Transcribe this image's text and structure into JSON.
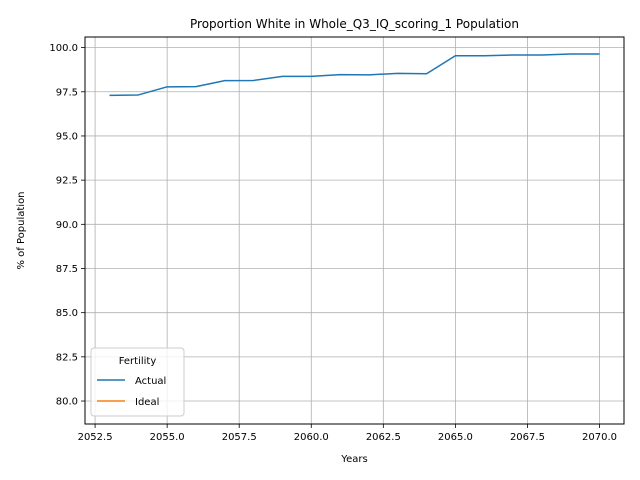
{
  "chart_data": {
    "type": "line",
    "title": "Proportion White in Whole_Q3_IQ_scoring_1 Population",
    "xlabel": "Years",
    "ylabel": "% of Population",
    "xlim": [
      2052.15,
      2070.85
    ],
    "ylim": [
      78.7,
      100.6
    ],
    "x_ticks": [
      2052.5,
      2055.0,
      2057.5,
      2060.0,
      2062.5,
      2065.0,
      2067.5,
      2070.0
    ],
    "x_tick_labels": [
      "2052.5",
      "2055.0",
      "2057.5",
      "2060.0",
      "2062.5",
      "2065.0",
      "2067.5",
      "2070.0"
    ],
    "y_ticks": [
      80.0,
      82.5,
      85.0,
      87.5,
      90.0,
      92.5,
      95.0,
      97.5,
      100.0
    ],
    "y_tick_labels": [
      "80.0",
      "82.5",
      "85.0",
      "87.5",
      "90.0",
      "92.5",
      "95.0",
      "97.5",
      "100.0"
    ],
    "grid": true,
    "legend": {
      "title": "Fertility",
      "placement": "lower-left"
    },
    "series": [
      {
        "name": "Actual",
        "color": "#1f77b4",
        "x": [
          2053,
          2054,
          2055,
          2056,
          2057,
          2058,
          2059,
          2060,
          2061,
          2062,
          2063,
          2064,
          2065,
          2066,
          2067,
          2068,
          2069,
          2070
        ],
        "y": [
          97.3,
          97.32,
          97.78,
          97.79,
          98.13,
          98.14,
          98.37,
          98.37,
          98.47,
          98.46,
          98.54,
          98.52,
          99.54,
          99.54,
          99.58,
          99.58,
          99.64,
          99.64
        ]
      },
      {
        "name": "Ideal",
        "color": "#ff7f0e",
        "x": [],
        "y": []
      }
    ]
  }
}
